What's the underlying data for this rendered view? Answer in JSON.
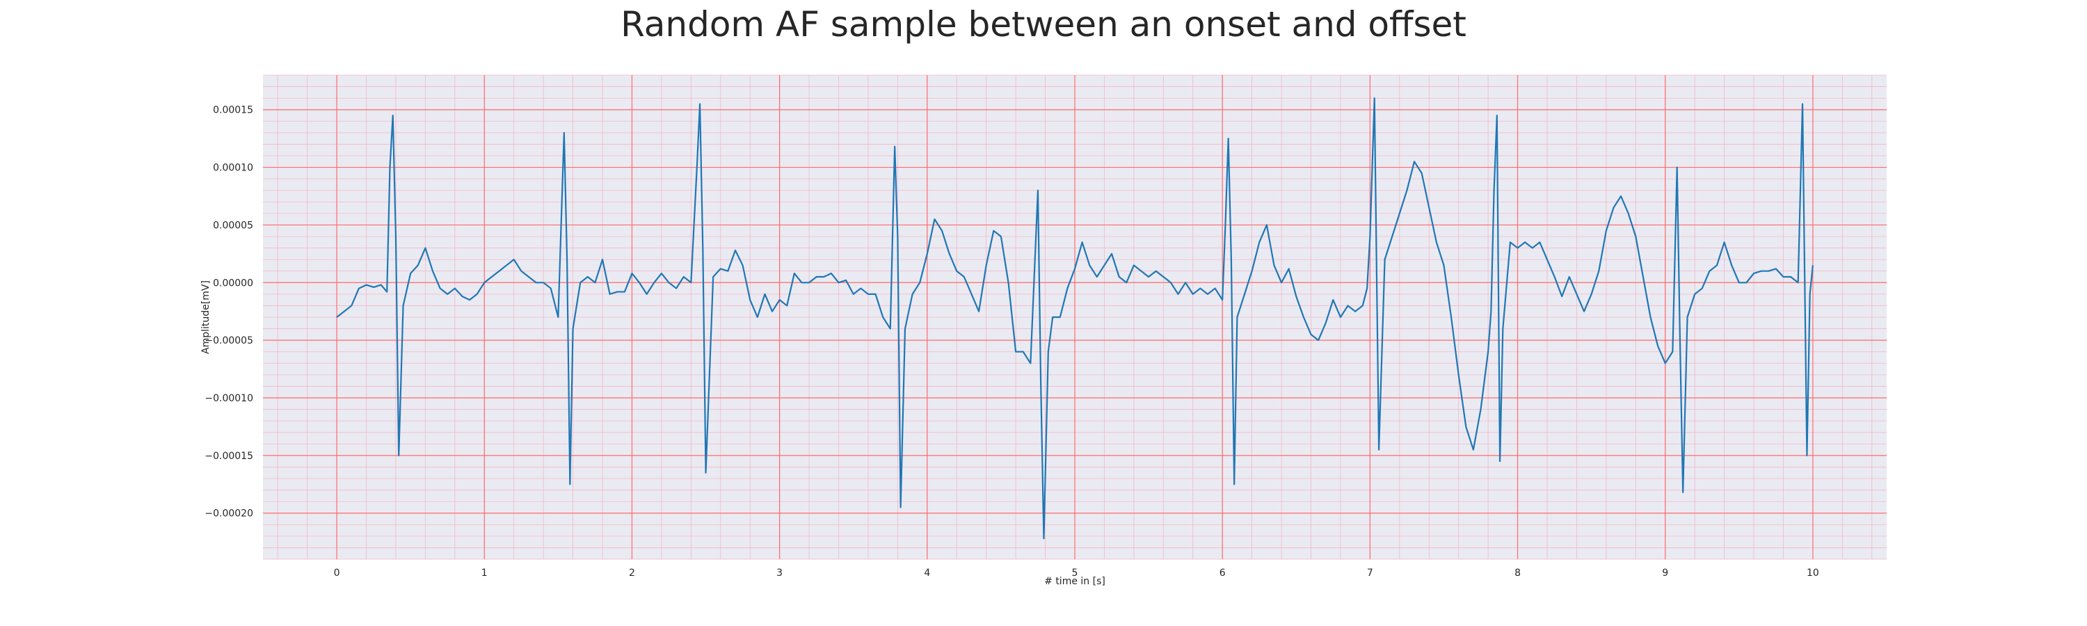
{
  "chart_data": {
    "type": "line",
    "title": "Random AF sample between an onset and offset",
    "xlabel": "# time in [s]",
    "ylabel": "Amplitude[mV]",
    "xlim": [
      -0.5,
      10.5
    ],
    "ylim": [
      -0.00024,
      0.00018
    ],
    "xticks": [
      0,
      1,
      2,
      3,
      4,
      5,
      6,
      7,
      8,
      9,
      10
    ],
    "xtick_labels": [
      "0",
      "1",
      "2",
      "3",
      "4",
      "5",
      "6",
      "7",
      "8",
      "9",
      "10"
    ],
    "yticks": [
      0.00015,
      0.0001,
      5e-05,
      0.0,
      -5e-05,
      -0.0001,
      -0.00015,
      -0.0002
    ],
    "ytick_labels": [
      "0.00015",
      "0.00010",
      "0.00005",
      "0.00000",
      "−0.00005",
      "−0.00010",
      "−0.00015",
      "−0.00020"
    ],
    "grid": true,
    "grid_major_color": "#ff6b6b",
    "grid_minor_color": "#f2b8c6",
    "background_color": "#eaeaf2",
    "line_color": "#1f77b4",
    "series": [
      {
        "x": [
          0.0,
          0.05,
          0.1,
          0.15,
          0.2,
          0.25,
          0.3,
          0.34,
          0.36,
          0.38,
          0.4,
          0.42,
          0.45,
          0.5,
          0.55,
          0.6,
          0.65,
          0.7,
          0.75,
          0.8,
          0.85,
          0.9,
          0.95,
          1.0,
          1.05,
          1.1,
          1.15,
          1.2,
          1.25,
          1.3,
          1.35,
          1.4,
          1.45,
          1.5,
          1.52,
          1.54,
          1.56,
          1.58,
          1.6,
          1.65,
          1.7,
          1.75,
          1.8,
          1.85,
          1.9,
          1.95,
          2.0,
          2.05,
          2.1,
          2.15,
          2.2,
          2.25,
          2.3,
          2.35,
          2.4,
          2.44,
          2.46,
          2.48,
          2.5,
          2.55,
          2.6,
          2.65,
          2.7,
          2.75,
          2.8,
          2.85,
          2.9,
          2.95,
          3.0,
          3.05,
          3.1,
          3.15,
          3.2,
          3.25,
          3.3,
          3.35,
          3.4,
          3.45,
          3.5,
          3.55,
          3.6,
          3.65,
          3.7,
          3.75,
          3.78,
          3.8,
          3.82,
          3.85,
          3.9,
          3.95,
          4.0,
          4.05,
          4.1,
          4.15,
          4.2,
          4.25,
          4.3,
          4.35,
          4.4,
          4.45,
          4.5,
          4.55,
          4.6,
          4.65,
          4.7,
          4.73,
          4.75,
          4.77,
          4.79,
          4.82,
          4.85,
          4.9,
          4.95,
          5.0,
          5.05,
          5.1,
          5.15,
          5.2,
          5.25,
          5.3,
          5.35,
          5.4,
          5.45,
          5.5,
          5.55,
          5.6,
          5.65,
          5.7,
          5.75,
          5.8,
          5.85,
          5.9,
          5.95,
          6.0,
          6.02,
          6.04,
          6.06,
          6.08,
          6.1,
          6.15,
          6.2,
          6.25,
          6.3,
          6.35,
          6.4,
          6.45,
          6.5,
          6.55,
          6.6,
          6.65,
          6.7,
          6.75,
          6.8,
          6.85,
          6.9,
          6.95,
          6.98,
          7.0,
          7.03,
          7.06,
          7.1,
          7.15,
          7.2,
          7.25,
          7.3,
          7.35,
          7.4,
          7.45,
          7.5,
          7.55,
          7.6,
          7.65,
          7.7,
          7.75,
          7.8,
          7.82,
          7.84,
          7.86,
          7.88,
          7.9,
          7.95,
          8.0,
          8.05,
          8.1,
          8.15,
          8.2,
          8.25,
          8.3,
          8.35,
          8.4,
          8.45,
          8.5,
          8.55,
          8.6,
          8.65,
          8.7,
          8.75,
          8.8,
          8.85,
          8.9,
          8.95,
          9.0,
          9.05,
          9.08,
          9.1,
          9.12,
          9.15,
          9.2,
          9.25,
          9.3,
          9.35,
          9.4,
          9.45,
          9.5,
          9.55,
          9.6,
          9.65,
          9.7,
          9.75,
          9.8,
          9.85,
          9.9,
          9.93,
          9.96,
          9.98,
          10.0
        ],
        "y": [
          -3e-05,
          -2.5e-05,
          -2e-05,
          -5e-06,
          -2e-06,
          -4e-06,
          -2e-06,
          -8e-06,
          0.0001,
          0.000145,
          4e-05,
          -0.00015,
          -2e-05,
          8e-06,
          1.5e-05,
          3e-05,
          1e-05,
          -5e-06,
          -1e-05,
          -5e-06,
          -1.2e-05,
          -1.5e-05,
          -1e-05,
          0.0,
          5e-06,
          1e-05,
          1.5e-05,
          2e-05,
          1e-05,
          5e-06,
          0.0,
          0.0,
          -5e-06,
          -3e-05,
          5e-05,
          0.00013,
          2e-05,
          -0.000175,
          -4e-05,
          0.0,
          5e-06,
          0.0,
          2e-05,
          -1e-05,
          -8e-06,
          -8e-06,
          8e-06,
          0.0,
          -1e-05,
          0.0,
          8e-06,
          0.0,
          -5e-06,
          5e-06,
          0.0,
          0.0001,
          0.000155,
          3e-05,
          -0.000165,
          5e-06,
          1.2e-05,
          1e-05,
          2.8e-05,
          1.5e-05,
          -1.5e-05,
          -3e-05,
          -1e-05,
          -2.5e-05,
          -1.5e-05,
          -2e-05,
          8e-06,
          0.0,
          0.0,
          5e-06,
          5e-06,
          8e-06,
          0.0,
          2e-06,
          -1e-05,
          -5e-06,
          -1e-05,
          -1e-05,
          -3e-05,
          -4e-05,
          0.000118,
          4e-05,
          -0.000195,
          -4e-05,
          -1e-05,
          0.0,
          2.5e-05,
          5.5e-05,
          4.5e-05,
          2.5e-05,
          1e-05,
          5e-06,
          -1e-05,
          -2.5e-05,
          1.5e-05,
          4.5e-05,
          4e-05,
          0.0,
          -6e-05,
          -6e-05,
          -7e-05,
          2e-05,
          8e-05,
          -9e-05,
          -0.000222,
          -6e-05,
          -3e-05,
          -3e-05,
          -5e-06,
          1.2e-05,
          3.5e-05,
          1.5e-05,
          5e-06,
          1.5e-05,
          2.5e-05,
          5e-06,
          0.0,
          1.5e-05,
          1e-05,
          5e-06,
          1e-05,
          5e-06,
          0.0,
          -1e-05,
          0.0,
          -1e-05,
          -5e-06,
          -1e-05,
          -5e-06,
          -1.5e-05,
          5e-05,
          0.000125,
          2e-05,
          -0.000175,
          -3e-05,
          -1e-05,
          1e-05,
          3.5e-05,
          5e-05,
          1.5e-05,
          0.0,
          1.2e-05,
          -1.2e-05,
          -3e-05,
          -4.5e-05,
          -5e-05,
          -3.5e-05,
          -1.5e-05,
          -3e-05,
          -2e-05,
          -2.5e-05,
          -2e-05,
          -5e-06,
          4e-05,
          0.00016,
          -0.000145,
          2e-05,
          4e-05,
          6e-05,
          8e-05,
          0.000105,
          9.5e-05,
          6.5e-05,
          3.5e-05,
          1.5e-05,
          -3e-05,
          -8e-05,
          -0.000125,
          -0.000145,
          -0.00011,
          -6e-05,
          -2.5e-05,
          8e-05,
          0.000145,
          -0.000155,
          -4e-05,
          3.5e-05,
          3e-05,
          3.5e-05,
          3e-05,
          3.5e-05,
          2e-05,
          5e-06,
          -1.2e-05,
          5e-06,
          -1e-05,
          -2.5e-05,
          -1e-05,
          1e-05,
          4.5e-05,
          6.5e-05,
          7.5e-05,
          6e-05,
          4e-05,
          5e-06,
          -3e-05,
          -5.5e-05,
          -7e-05,
          -6e-05,
          0.0001,
          -5e-05,
          -0.000182,
          -3e-05,
          -1e-05,
          -5e-06,
          1e-05,
          1.5e-05,
          3.5e-05,
          1.5e-05,
          0.0,
          0.0,
          8e-06,
          1e-05,
          1e-05,
          1.2e-05,
          5e-06,
          5e-06,
          0.0,
          0.000155,
          -0.00015,
          -1e-05,
          1.5e-05
        ]
      }
    ]
  }
}
